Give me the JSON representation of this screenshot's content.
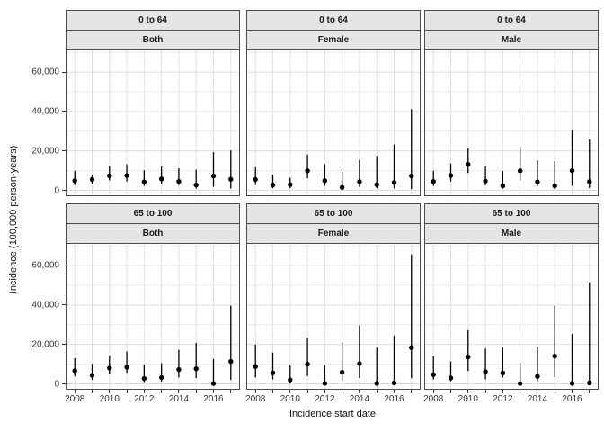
{
  "chart_data": {
    "type": "pointrange",
    "title": "",
    "xlabel": "Incidence start date",
    "ylabel": "Incidence (100,000 person-years)",
    "x": [
      2008,
      2009,
      2010,
      2011,
      2012,
      2013,
      2014,
      2015,
      2016,
      2017
    ],
    "x_breaks": [
      2008,
      2010,
      2012,
      2014,
      2016
    ],
    "x_tick_labels": [
      "2008",
      "2010",
      "2012",
      "2014",
      "2016"
    ],
    "y_ticks": [
      0,
      20000,
      40000,
      60000
    ],
    "y_tick_labels": [
      "0",
      "20,000",
      "40,000",
      "60,000"
    ],
    "y_minor_ticks": [
      10000,
      30000,
      50000,
      70000
    ],
    "ylim": [
      -2500,
      71000
    ],
    "grid": "major and minor, both axes",
    "legend": "none",
    "facet_row_labels": [
      "0 to 64",
      "65 to 100"
    ],
    "facet_col_labels": [
      "Both",
      "Female",
      "Male"
    ],
    "facets": [
      {
        "age": "0 to 64",
        "sex": "Both",
        "years": [
          2008,
          2009,
          2010,
          2011,
          2012,
          2013,
          2014,
          2015,
          2016,
          2017
        ],
        "value": [
          4900,
          5500,
          7400,
          7500,
          4300,
          5800,
          4500,
          2700,
          7300,
          5600
        ],
        "lower": [
          2700,
          3200,
          5000,
          4500,
          2300,
          3400,
          2600,
          900,
          1800,
          900
        ],
        "upper": [
          9900,
          7900,
          12300,
          13200,
          10200,
          12100,
          11200,
          10500,
          19400,
          20200
        ]
      },
      {
        "age": "0 to 64",
        "sex": "Female",
        "years": [
          2008,
          2009,
          2010,
          2011,
          2012,
          2013,
          2014,
          2015,
          2016,
          2017
        ],
        "value": [
          5500,
          2700,
          2900,
          9900,
          4900,
          1500,
          4400,
          2900,
          4000,
          7300
        ],
        "lower": [
          2700,
          1100,
          1100,
          6100,
          2300,
          300,
          1800,
          1100,
          1100,
          600
        ],
        "upper": [
          11700,
          7900,
          6400,
          18200,
          13200,
          9400,
          15500,
          17500,
          23200,
          41200
        ]
      },
      {
        "age": "0 to 64",
        "sex": "Male",
        "years": [
          2008,
          2009,
          2010,
          2011,
          2012,
          2013,
          2014,
          2015,
          2016,
          2017
        ],
        "value": [
          4500,
          7500,
          13200,
          4700,
          2300,
          9900,
          4300,
          2300,
          10000,
          4400
        ],
        "lower": [
          2300,
          4500,
          8800,
          2600,
          800,
          5000,
          2100,
          600,
          2300,
          1200
        ],
        "upper": [
          9900,
          13600,
          21200,
          12100,
          9900,
          22300,
          15200,
          14900,
          30600,
          25800
        ]
      },
      {
        "age": "65 to 100",
        "sex": "Both",
        "years": [
          2008,
          2009,
          2010,
          2011,
          2012,
          2013,
          2014,
          2015,
          2016,
          2017
        ],
        "value": [
          6700,
          4300,
          8000,
          8500,
          2700,
          3200,
          7300,
          7700,
          200,
          11400
        ],
        "lower": [
          3800,
          2100,
          4900,
          5600,
          900,
          1200,
          3200,
          2900,
          0,
          2000
        ],
        "upper": [
          13000,
          10200,
          14300,
          16400,
          9700,
          10500,
          17300,
          20800,
          12600,
          39700
        ]
      },
      {
        "age": "65 to 100",
        "sex": "Female",
        "years": [
          2008,
          2009,
          2010,
          2011,
          2012,
          2013,
          2014,
          2015,
          2016,
          2017
        ],
        "value": [
          8800,
          5600,
          2000,
          10000,
          300,
          5900,
          10300,
          300,
          500,
          18400
        ],
        "lower": [
          3200,
          2300,
          200,
          4000,
          0,
          1400,
          3000,
          0,
          0,
          2800
        ],
        "upper": [
          20000,
          15900,
          9500,
          23500,
          9500,
          21100,
          29700,
          18400,
          24500,
          65600
        ]
      },
      {
        "age": "65 to 100",
        "sex": "Male",
        "years": [
          2008,
          2009,
          2010,
          2011,
          2012,
          2013,
          2014,
          2015,
          2016,
          2017
        ],
        "value": [
          4700,
          3000,
          13700,
          6200,
          5500,
          200,
          3800,
          14100,
          300,
          500
        ],
        "lower": [
          2300,
          1400,
          6500,
          2300,
          3200,
          0,
          1400,
          3500,
          0,
          0
        ],
        "upper": [
          14100,
          11400,
          27200,
          17900,
          18400,
          10600,
          18800,
          39700,
          25300,
          51500
        ]
      }
    ]
  },
  "colors": {
    "background": "#ffffff",
    "panel_border": "#4d4d4d",
    "strip_fill": "#e5e5e5",
    "grid_major": "#dcdcdc",
    "grid_minor": "#ececec",
    "grid_vertical": "#e2e2e2",
    "point": "#000000",
    "tick": "#333333",
    "tick_text": "#333333",
    "axis_title_text": "#111111"
  }
}
